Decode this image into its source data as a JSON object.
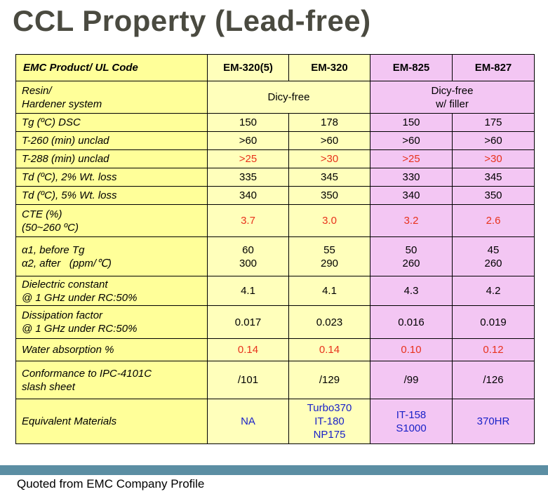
{
  "title": "CCL Property (Lead-free)",
  "footer": "Quoted from EMC Company Profile",
  "table": {
    "header": {
      "label": "EMC Product/ UL Code",
      "products": [
        "EM-320(5)",
        "EM-320",
        "EM-825",
        "EM-827"
      ]
    },
    "resin": {
      "label_lines": [
        "Resin/",
        "Hardener system"
      ],
      "group1": "Dicy-free",
      "group2_lines": [
        "Dicy-free",
        "w/ filler"
      ]
    },
    "rows": {
      "tg": {
        "label": "Tg (ºC) DSC",
        "values": [
          "150",
          "178",
          "150",
          "175"
        ]
      },
      "t260": {
        "label": "T-260 (min) unclad",
        "values": [
          ">60",
          ">60",
          ">60",
          ">60"
        ]
      },
      "t288": {
        "label": "T-288 (min) unclad",
        "values": [
          ">25",
          ">30",
          ">25",
          ">30"
        ]
      },
      "td2": {
        "label": "Td (ºC), 2% Wt. loss",
        "values": [
          "335",
          "345",
          "330",
          "345"
        ]
      },
      "td5": {
        "label": "Td (ºC), 5% Wt. loss",
        "values": [
          "340",
          "350",
          "340",
          "350"
        ]
      },
      "cte": {
        "label_lines": [
          "CTE (%)",
          "(50~260 ºC)"
        ],
        "values": [
          "3.7",
          "3.0",
          "3.2",
          "2.6"
        ]
      },
      "alpha": {
        "label_lines": [
          "α1, before Tg",
          "α2, after   (ppm/℃)"
        ],
        "values": [
          [
            "60",
            "300"
          ],
          [
            "55",
            "290"
          ],
          [
            "50",
            "260"
          ],
          [
            "45",
            "260"
          ]
        ]
      },
      "dk": {
        "label_lines": [
          "Dielectric constant",
          "@ 1 GHz under RC:50%"
        ],
        "values": [
          "4.1",
          "4.1",
          "4.3",
          "4.2"
        ]
      },
      "df": {
        "label_lines": [
          "Dissipation factor",
          "@ 1 GHz under RC:50%"
        ],
        "values": [
          "0.017",
          "0.023",
          "0.016",
          "0.019"
        ]
      },
      "water": {
        "label": "Water absorption %",
        "values": [
          "0.14",
          "0.14",
          "0.10",
          "0.12"
        ]
      },
      "ipc": {
        "label_lines": [
          "Conformance to IPC-4101C",
          "slash sheet"
        ],
        "values": [
          "/101",
          "/129",
          "/99",
          "/126"
        ]
      },
      "equiv": {
        "label": "Equivalent Materials",
        "values": [
          [
            "NA"
          ],
          [
            "Turbo370",
            "IT-180",
            "NP175"
          ],
          [
            "IT-158",
            "S1000"
          ],
          [
            "370HR"
          ]
        ]
      }
    }
  },
  "colors": {
    "label_bg": "#ffff99",
    "yellow_cell": "#ffffbb",
    "pink_cell": "#f3c6f3",
    "highlight_red": "#e8321c",
    "equivalent_blue": "#1a22c8",
    "bottom_bar": "#5b8ea3",
    "title": "#4a4a40"
  }
}
